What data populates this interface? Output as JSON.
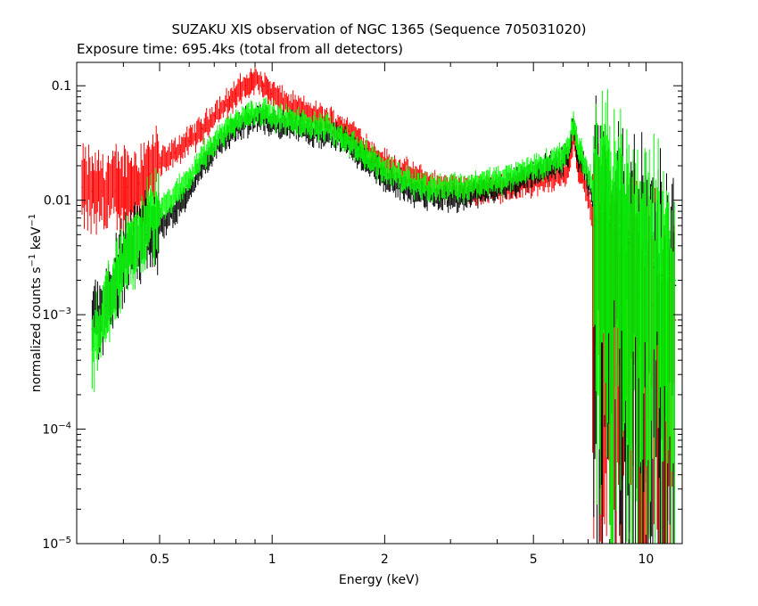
{
  "chart_data": {
    "type": "scatter",
    "title": "SUZAKU XIS observation of NGC 1365 (Sequence 705031020)",
    "subtitle": "Exposure time: 695.4ks (total from all detectors)",
    "xlabel": "Energy (keV)",
    "ylabel": {
      "base": "normalized counts s",
      "sup1": "−1",
      "mid": " keV",
      "sup2": "−1"
    },
    "xscale": "log",
    "yscale": "log",
    "xlim": [
      0.3,
      12.5
    ],
    "ylim": [
      1e-05,
      0.16
    ],
    "x_ticks": [
      {
        "value": 0.5,
        "label": "0.5"
      },
      {
        "value": 1,
        "label": "1"
      },
      {
        "value": 2,
        "label": "2"
      },
      {
        "value": 5,
        "label": "5"
      },
      {
        "value": 10,
        "label": "10"
      }
    ],
    "y_ticks": [
      {
        "value": 0.1,
        "label": "0.1",
        "base": "",
        "exp": ""
      },
      {
        "value": 0.01,
        "label": "0.01",
        "base": "",
        "exp": ""
      },
      {
        "value": 0.001,
        "label": "",
        "base": "10",
        "exp": "−3"
      },
      {
        "value": 0.0001,
        "label": "",
        "base": "10",
        "exp": "−4"
      },
      {
        "value": 1e-05,
        "label": "",
        "base": "10",
        "exp": "−5"
      }
    ],
    "grid": false,
    "legend": "none",
    "series": [
      {
        "color": "#ff0000",
        "points": [
          [
            0.31,
            0.013
          ],
          [
            0.33,
            0.012
          ],
          [
            0.35,
            0.012
          ],
          [
            0.38,
            0.012
          ],
          [
            0.41,
            0.013
          ],
          [
            0.44,
            0.014
          ],
          [
            0.47,
            0.017
          ],
          [
            0.5,
            0.021
          ],
          [
            0.55,
            0.026
          ],
          [
            0.6,
            0.033
          ],
          [
            0.65,
            0.042
          ],
          [
            0.7,
            0.055
          ],
          [
            0.75,
            0.068
          ],
          [
            0.8,
            0.085
          ],
          [
            0.85,
            0.1
          ],
          [
            0.9,
            0.11
          ],
          [
            0.95,
            0.1
          ],
          [
            1.0,
            0.085
          ],
          [
            1.1,
            0.068
          ],
          [
            1.2,
            0.06
          ],
          [
            1.3,
            0.055
          ],
          [
            1.4,
            0.05
          ],
          [
            1.5,
            0.045
          ],
          [
            1.6,
            0.04
          ],
          [
            1.7,
            0.034
          ],
          [
            1.8,
            0.028
          ],
          [
            1.9,
            0.024
          ],
          [
            2.0,
            0.021
          ],
          [
            2.2,
            0.018
          ],
          [
            2.4,
            0.016
          ],
          [
            2.6,
            0.014
          ],
          [
            2.8,
            0.013
          ],
          [
            3.0,
            0.013
          ],
          [
            3.3,
            0.012
          ],
          [
            3.6,
            0.012
          ],
          [
            4.0,
            0.013
          ],
          [
            4.4,
            0.013
          ],
          [
            4.8,
            0.014
          ],
          [
            5.2,
            0.015
          ],
          [
            5.6,
            0.016
          ],
          [
            6.0,
            0.017
          ],
          [
            6.2,
            0.019
          ],
          [
            6.4,
            0.036
          ],
          [
            6.6,
            0.018
          ],
          [
            6.8,
            0.015
          ],
          [
            7.0,
            0.011
          ],
          [
            7.2,
            0.006
          ],
          [
            7.5,
            0.003
          ],
          [
            8.0,
            0.0025
          ],
          [
            8.5,
            0.002
          ],
          [
            9.0,
            0.0017
          ],
          [
            9.5,
            0.0015
          ],
          [
            10.0,
            0.0013
          ],
          [
            10.5,
            0.0012
          ],
          [
            11.0,
            0.001
          ],
          [
            11.5,
            0.001
          ],
          [
            12.0,
            0.0009
          ]
        ]
      },
      {
        "color": "#000000",
        "points": [
          [
            0.33,
            0.00075
          ],
          [
            0.36,
            0.0012
          ],
          [
            0.38,
            0.002
          ],
          [
            0.4,
            0.003
          ],
          [
            0.43,
            0.004
          ],
          [
            0.46,
            0.005
          ],
          [
            0.5,
            0.006
          ],
          [
            0.55,
            0.008
          ],
          [
            0.6,
            0.012
          ],
          [
            0.65,
            0.02
          ],
          [
            0.7,
            0.028
          ],
          [
            0.75,
            0.035
          ],
          [
            0.8,
            0.042
          ],
          [
            0.85,
            0.048
          ],
          [
            0.9,
            0.052
          ],
          [
            0.95,
            0.05
          ],
          [
            1.0,
            0.048
          ],
          [
            1.1,
            0.045
          ],
          [
            1.2,
            0.042
          ],
          [
            1.3,
            0.04
          ],
          [
            1.4,
            0.038
          ],
          [
            1.5,
            0.035
          ],
          [
            1.6,
            0.03
          ],
          [
            1.7,
            0.026
          ],
          [
            1.8,
            0.022
          ],
          [
            1.9,
            0.019
          ],
          [
            2.0,
            0.016
          ],
          [
            2.2,
            0.014
          ],
          [
            2.4,
            0.012
          ],
          [
            2.6,
            0.011
          ],
          [
            2.8,
            0.011
          ],
          [
            3.0,
            0.011
          ],
          [
            3.3,
            0.011
          ],
          [
            3.6,
            0.012
          ],
          [
            4.0,
            0.013
          ],
          [
            4.4,
            0.014
          ],
          [
            4.8,
            0.016
          ],
          [
            5.2,
            0.018
          ],
          [
            5.6,
            0.02
          ],
          [
            6.0,
            0.022
          ],
          [
            6.2,
            0.025
          ],
          [
            6.4,
            0.045
          ],
          [
            6.6,
            0.024
          ],
          [
            6.8,
            0.02
          ],
          [
            7.0,
            0.015
          ],
          [
            7.3,
            0.009
          ],
          [
            7.6,
            0.007
          ],
          [
            8.0,
            0.006
          ],
          [
            8.5,
            0.005
          ],
          [
            9.0,
            0.0042
          ],
          [
            9.5,
            0.0036
          ],
          [
            10.0,
            0.003
          ],
          [
            10.5,
            0.0026
          ],
          [
            11.0,
            0.0022
          ],
          [
            11.5,
            0.002
          ],
          [
            12.0,
            0.0018
          ]
        ]
      },
      {
        "color": "#00ff00",
        "points": [
          [
            0.33,
            0.0005
          ],
          [
            0.36,
            0.001
          ],
          [
            0.38,
            0.0018
          ],
          [
            0.4,
            0.003
          ],
          [
            0.43,
            0.004
          ],
          [
            0.46,
            0.006
          ],
          [
            0.5,
            0.008
          ],
          [
            0.55,
            0.011
          ],
          [
            0.6,
            0.016
          ],
          [
            0.65,
            0.024
          ],
          [
            0.7,
            0.032
          ],
          [
            0.75,
            0.04
          ],
          [
            0.8,
            0.048
          ],
          [
            0.85,
            0.055
          ],
          [
            0.9,
            0.06
          ],
          [
            0.95,
            0.058
          ],
          [
            1.0,
            0.055
          ],
          [
            1.1,
            0.05
          ],
          [
            1.2,
            0.047
          ],
          [
            1.3,
            0.045
          ],
          [
            1.4,
            0.042
          ],
          [
            1.5,
            0.038
          ],
          [
            1.6,
            0.033
          ],
          [
            1.7,
            0.028
          ],
          [
            1.8,
            0.024
          ],
          [
            1.9,
            0.021
          ],
          [
            2.0,
            0.018
          ],
          [
            2.2,
            0.016
          ],
          [
            2.4,
            0.014
          ],
          [
            2.6,
            0.013
          ],
          [
            2.8,
            0.013
          ],
          [
            3.0,
            0.013
          ],
          [
            3.3,
            0.013
          ],
          [
            3.6,
            0.014
          ],
          [
            4.0,
            0.015
          ],
          [
            4.4,
            0.016
          ],
          [
            4.8,
            0.018
          ],
          [
            5.2,
            0.02
          ],
          [
            5.6,
            0.022
          ],
          [
            6.0,
            0.025
          ],
          [
            6.2,
            0.028
          ],
          [
            6.4,
            0.05
          ],
          [
            6.6,
            0.028
          ],
          [
            6.8,
            0.023
          ],
          [
            7.0,
            0.017
          ],
          [
            7.3,
            0.011
          ],
          [
            7.6,
            0.008
          ],
          [
            8.0,
            0.007
          ],
          [
            8.5,
            0.006
          ],
          [
            9.0,
            0.0048
          ],
          [
            9.5,
            0.004
          ],
          [
            10.0,
            0.0034
          ],
          [
            10.5,
            0.003
          ],
          [
            11.0,
            0.0025
          ],
          [
            11.5,
            0.0022
          ],
          [
            12.0,
            0.002
          ]
        ]
      }
    ]
  }
}
